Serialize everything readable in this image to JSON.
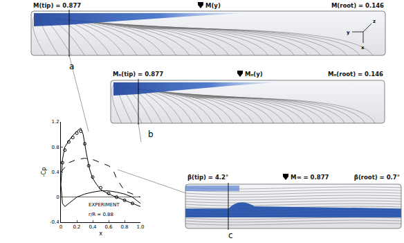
{
  "panels": [
    {
      "label": "a",
      "left_text": "M(tip) = 0.877",
      "center_text": "M(y)",
      "right_text": "M(root) = 0.146"
    },
    {
      "label": "b",
      "left_text": "Mₙ(tip) = 0.877",
      "center_text": "Mₙ(y)",
      "right_text": "Mₙ(root) = 0.146"
    },
    {
      "label": "c",
      "left_text": "β(tip) = 4.2°",
      "center_text": "M∞ = 0.877",
      "right_text": "β(root) = 0.7°"
    }
  ],
  "axis_icon_labels": [
    "z",
    "y",
    "x"
  ],
  "chart_data": {
    "type": "line",
    "xlabel": "x",
    "ylabel": "-Cp",
    "xlim": [
      0,
      1.0
    ],
    "xticks": [
      0,
      0.2,
      0.4,
      0.6,
      0.8,
      {
        "value": 1,
        "label": "1.0"
      }
    ],
    "ylim": [
      -0.4,
      1.2
    ],
    "yticks": [
      -0.4,
      0,
      0.4,
      0.8,
      1.2
    ],
    "annotations": [
      "EXPERIMENT",
      "r/R = 0.88"
    ],
    "series": [
      {
        "color": "#000000",
        "line_style": "solid",
        "x": [
          0,
          0.02,
          0.05,
          0.1,
          0.15,
          0.2,
          0.25,
          0.28,
          0.32,
          0.36,
          0.4,
          0.45,
          0.5,
          0.6,
          0.7,
          0.8,
          0.9,
          1.0
        ],
        "values": [
          0.2,
          0.6,
          0.8,
          0.9,
          0.98,
          1.05,
          1.1,
          1.0,
          0.7,
          0.45,
          0.3,
          0.2,
          0.12,
          0.05,
          0.0,
          -0.05,
          -0.1,
          -0.15
        ]
      },
      {
        "color": "#000000",
        "line_style": "solid",
        "x": [
          0,
          0.02,
          0.05,
          0.1,
          0.2,
          0.3,
          0.4,
          0.5,
          0.6,
          0.7,
          0.8,
          0.9,
          1.0
        ],
        "values": [
          0.2,
          -0.1,
          -0.15,
          -0.1,
          0.0,
          0.05,
          0.08,
          0.1,
          0.1,
          0.08,
          0.05,
          0.0,
          -0.1
        ]
      },
      {
        "color": "#000000",
        "line_style": "dash",
        "x": [
          0,
          0.1,
          0.2,
          0.3,
          0.4,
          0.5,
          0.6,
          0.65,
          0.7,
          0.8,
          0.9,
          1.0
        ],
        "values": [
          0.4,
          0.55,
          0.6,
          0.62,
          0.6,
          0.55,
          0.5,
          0.45,
          0.3,
          0.1,
          0.05,
          0.0
        ]
      },
      {
        "type": "scatter",
        "color": "#000000",
        "marker": "circle-open",
        "x": [
          0.02,
          0.05,
          0.1,
          0.15,
          0.2,
          0.25,
          0.3,
          0.35,
          0.4,
          0.5,
          0.6,
          0.7,
          0.8,
          0.9
        ],
        "values": [
          0.55,
          0.75,
          0.88,
          0.95,
          1.02,
          1.05,
          0.85,
          0.5,
          0.32,
          0.15,
          0.06,
          0.0,
          -0.05,
          -0.1
        ]
      }
    ]
  }
}
